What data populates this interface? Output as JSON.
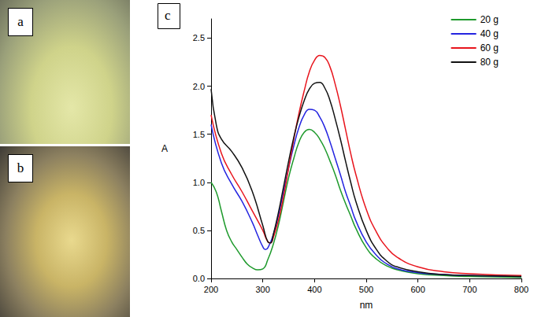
{
  "photos": [
    {
      "label": "a"
    },
    {
      "label": "b"
    }
  ],
  "chart_data": {
    "type": "line",
    "label": "c",
    "x_label": "nm",
    "y_label": "A",
    "xlim": [
      200,
      800
    ],
    "xticks": [
      200,
      300,
      400,
      500,
      600,
      700,
      800
    ],
    "ylim": [
      0,
      2.7
    ],
    "yticks": [
      {
        "value": 0,
        "label": "0.0"
      },
      {
        "value": 0.5,
        "label": "0.5"
      },
      {
        "value": 1,
        "label": "1.0"
      },
      {
        "value": 1.5,
        "label": "1.5"
      },
      {
        "value": 2,
        "label": "2.0"
      },
      {
        "value": 2.5,
        "label": "2.5"
      }
    ],
    "grid": false,
    "legend": "top-right",
    "series": [
      {
        "name": "20 g",
        "color": "#1e9a2c",
        "x": [
          200,
          210,
          220,
          230,
          240,
          250,
          260,
          270,
          280,
          290,
          300,
          310,
          320,
          330,
          340,
          350,
          360,
          370,
          380,
          390,
          400,
          410,
          420,
          430,
          440,
          450,
          460,
          470,
          480,
          500,
          520,
          540,
          560,
          600,
          650,
          700,
          800
        ],
        "values": [
          1.0,
          0.9,
          0.7,
          0.5,
          0.38,
          0.3,
          0.22,
          0.15,
          0.11,
          0.09,
          0.1,
          0.2,
          0.35,
          0.55,
          0.8,
          1.05,
          1.25,
          1.42,
          1.52,
          1.55,
          1.52,
          1.45,
          1.35,
          1.22,
          1.08,
          0.92,
          0.78,
          0.65,
          0.52,
          0.32,
          0.2,
          0.13,
          0.09,
          0.05,
          0.03,
          0.02,
          0.01
        ]
      },
      {
        "name": "40 g",
        "color": "#2424e0",
        "x": [
          200,
          220,
          240,
          260,
          280,
          290,
          300,
          305,
          310,
          320,
          330,
          340,
          350,
          360,
          370,
          380,
          390,
          400,
          410,
          420,
          430,
          440,
          450,
          460,
          470,
          480,
          500,
          520,
          540,
          560,
          600,
          650,
          700,
          800
        ],
        "values": [
          1.6,
          1.2,
          0.98,
          0.8,
          0.58,
          0.45,
          0.33,
          0.3,
          0.32,
          0.45,
          0.65,
          0.9,
          1.15,
          1.38,
          1.57,
          1.7,
          1.76,
          1.75,
          1.68,
          1.57,
          1.42,
          1.25,
          1.08,
          0.9,
          0.75,
          0.6,
          0.38,
          0.24,
          0.15,
          0.1,
          0.06,
          0.04,
          0.03,
          0.02
        ]
      },
      {
        "name": "60 g",
        "color": "#e8141c",
        "x": [
          200,
          220,
          240,
          260,
          280,
          300,
          310,
          315,
          320,
          330,
          340,
          350,
          360,
          370,
          380,
          390,
          400,
          410,
          420,
          430,
          440,
          450,
          460,
          470,
          480,
          500,
          520,
          540,
          560,
          600,
          650,
          700,
          800
        ],
        "values": [
          1.7,
          1.3,
          1.08,
          0.9,
          0.7,
          0.5,
          0.38,
          0.37,
          0.42,
          0.6,
          0.85,
          1.15,
          1.45,
          1.72,
          1.95,
          2.15,
          2.27,
          2.32,
          2.3,
          2.2,
          2.02,
          1.8,
          1.55,
          1.3,
          1.08,
          0.72,
          0.48,
          0.32,
          0.22,
          0.12,
          0.07,
          0.05,
          0.03
        ]
      },
      {
        "name": "80 g",
        "color": "#111111",
        "x": [
          200,
          210,
          220,
          240,
          260,
          280,
          300,
          310,
          315,
          320,
          330,
          340,
          350,
          360,
          370,
          380,
          390,
          400,
          410,
          420,
          430,
          440,
          450,
          460,
          470,
          480,
          500,
          520,
          540,
          560,
          600,
          650,
          700,
          800
        ],
        "values": [
          1.97,
          1.6,
          1.45,
          1.32,
          1.15,
          0.9,
          0.55,
          0.38,
          0.37,
          0.45,
          0.68,
          0.95,
          1.22,
          1.47,
          1.68,
          1.85,
          1.97,
          2.03,
          2.04,
          1.98,
          1.85,
          1.66,
          1.45,
          1.22,
          1.0,
          0.8,
          0.5,
          0.3,
          0.18,
          0.12,
          0.07,
          0.04,
          0.03,
          0.02
        ]
      }
    ]
  }
}
